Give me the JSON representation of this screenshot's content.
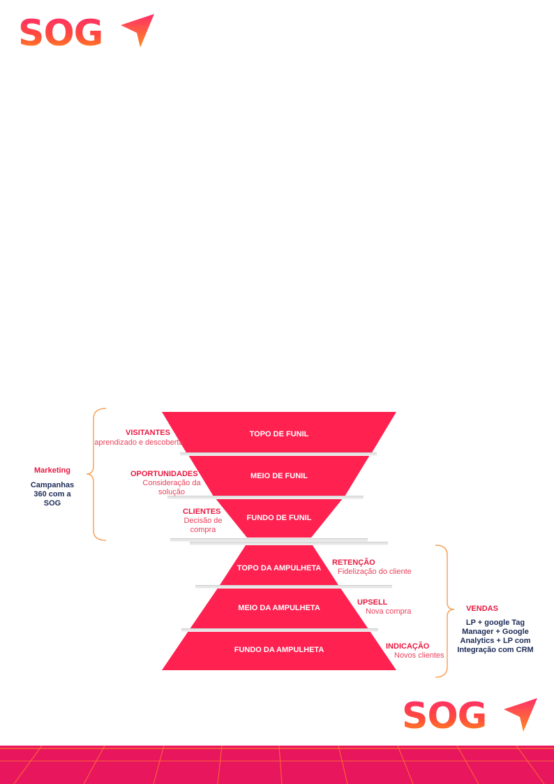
{
  "brand": {
    "logo_text": "SOG",
    "colors": {
      "primary": "#ff2d6a",
      "accent": "#ff8a1e",
      "funnel": "#ff2150",
      "footer": "#e8175d",
      "navy": "#1b2a55"
    }
  },
  "funnel": {
    "stages": [
      "TOPO DE FUNIL",
      "MEIO DE FUNIL",
      "FUNDO DE FUNIL"
    ],
    "labels": [
      {
        "title": "VISITANTES",
        "sub": "aprendizado e descoberta"
      },
      {
        "title": "OPORTUNIDADES",
        "sub": "Consideração da solução"
      },
      {
        "title": "CLIENTES",
        "sub": "Decisão de compra"
      }
    ]
  },
  "hourglass": {
    "stages": [
      "TOPO DA AMPULHETA",
      "MEIO DA AMPULHETA",
      "FUNDO DA AMPULHETA"
    ],
    "labels": [
      {
        "title": "RETENÇÃO",
        "sub": "Fidelização do cliente"
      },
      {
        "title": "UPSELL",
        "sub": "Nova compra"
      },
      {
        "title": "INDICAÇÃO",
        "sub": "Novos clientes"
      }
    ]
  },
  "marketing": {
    "heading": "Marketing",
    "body": "Campanhas 360 com a SOG"
  },
  "vendas": {
    "heading": "VENDAS",
    "body": "LP + google Tag Manager + Google Analytics + LP com Integração com CRM"
  }
}
